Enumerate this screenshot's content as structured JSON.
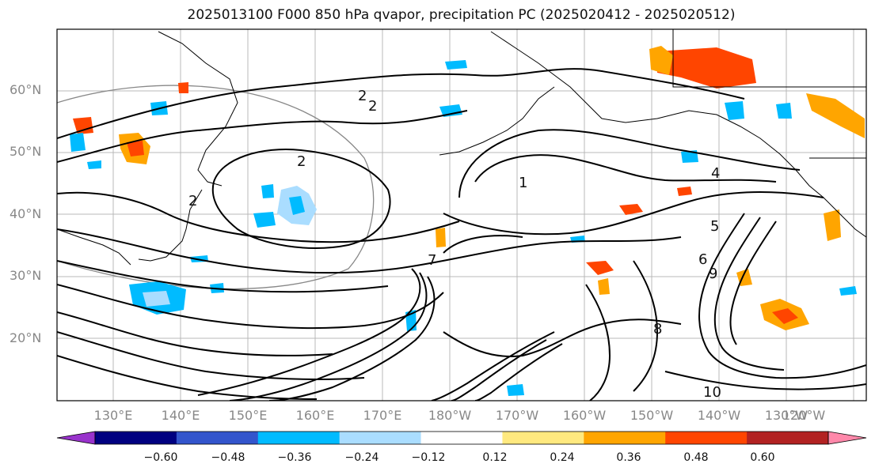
{
  "title": "2025013100 F000 850 hPa qvapor, precipitation PC (2025020412 - 2025020512)",
  "map": {
    "lat_labels": [
      "60°N",
      "50°N",
      "40°N",
      "30°N",
      "20°N"
    ],
    "lon_labels": [
      "130°E",
      "140°E",
      "150°E",
      "160°E",
      "170°E",
      "180°W",
      "170°W",
      "160°W",
      "150°W",
      "140°W",
      "130°W",
      "120°W"
    ],
    "contour_labels": [
      "2",
      "2",
      "2",
      "1",
      "2",
      "4",
      "5",
      "6",
      "7",
      "8",
      "10",
      "9"
    ]
  },
  "colorbar": {
    "colors": [
      "#9933cc",
      "#000080",
      "#3355cc",
      "#00bbff",
      "#aaddff",
      "#ffffff",
      "#ffe97f",
      "#ffa500",
      "#ff4500",
      "#b22222",
      "#ff88aa"
    ],
    "ticks": [
      "−0.60",
      "−0.48",
      "−0.36",
      "−0.24",
      "−0.12",
      "0.12",
      "0.24",
      "0.36",
      "0.48",
      "0.60"
    ]
  }
}
